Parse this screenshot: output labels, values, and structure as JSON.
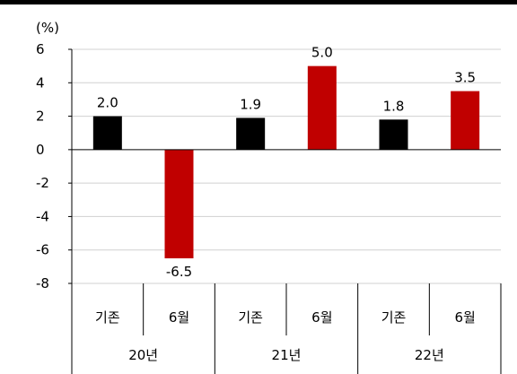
{
  "chart_data": {
    "type": "bar",
    "unit_label": "(%)",
    "ylim": [
      -8,
      6
    ],
    "yticks": [
      "6",
      "4",
      "2",
      "0",
      "-2",
      "-4",
      "-6",
      "-8"
    ],
    "grid": true,
    "groups": [
      "20년",
      "21년",
      "22년"
    ],
    "categories": [
      "기존",
      "6월",
      "기존",
      "6월",
      "기존",
      "6월"
    ],
    "values": [
      2.0,
      -6.5,
      1.9,
      5.0,
      1.8,
      3.5
    ],
    "value_labels": [
      "2.0",
      "-6.5",
      "1.9",
      "5.0",
      "1.8",
      "3.5"
    ],
    "colors": [
      "#000000",
      "#c00000",
      "#000000",
      "#c00000",
      "#000000",
      "#c00000"
    ]
  }
}
